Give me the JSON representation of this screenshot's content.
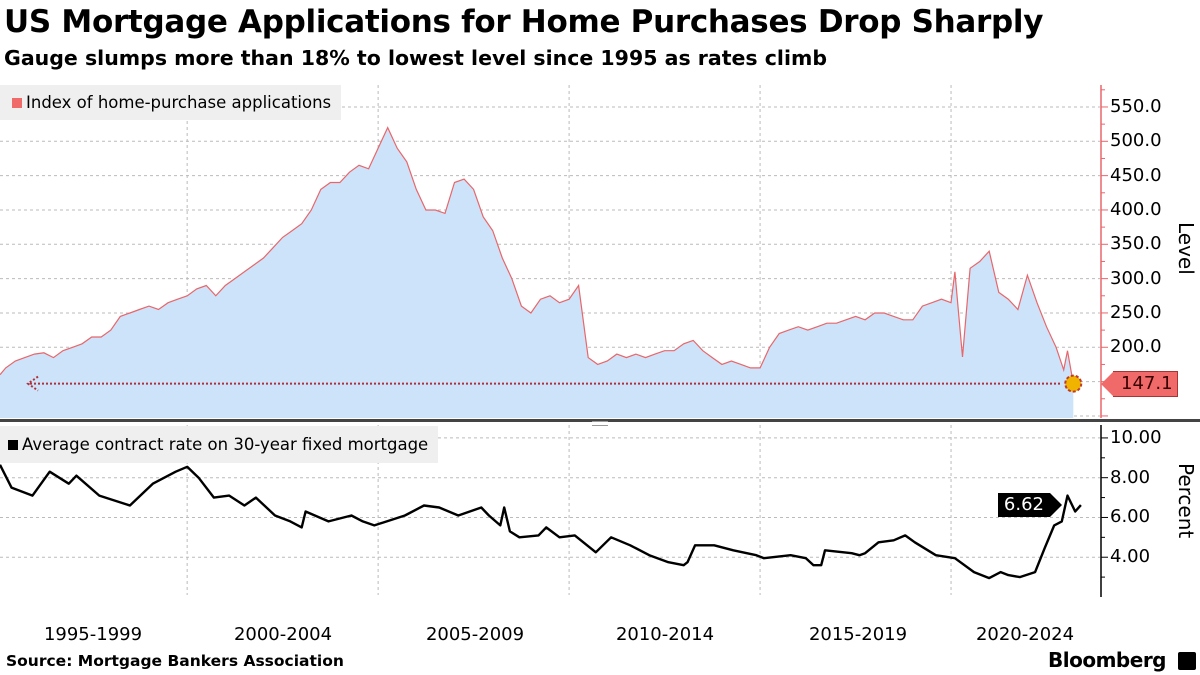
{
  "header": {
    "title": "US Mortgage Applications for Home Purchases Drop Sharply",
    "subtitle": "Gauge slumps more than 18% to lowest level since 1995 as rates climb"
  },
  "footer": {
    "source": "Source: Mortgage Bankers Association",
    "logo_text": "Bloomberg"
  },
  "x_tick_labels": [
    "1995-1999",
    "2000-2004",
    "2005-2009",
    "2010-2014",
    "2015-2019",
    "2020-2024"
  ],
  "chart_data": [
    {
      "type": "area",
      "legend": "Index of home-purchase applications",
      "ylabel": "Level",
      "xlim": [
        1995.1,
        2023.9
      ],
      "ylim": [
        97,
        582
      ],
      "y_ticks": [
        "550.0",
        "500.0",
        "450.0",
        "400.0",
        "350.0",
        "300.0",
        "250.0",
        "200.0"
      ],
      "y_tick_values": [
        550,
        500,
        450,
        400,
        350,
        300,
        250,
        200
      ],
      "gridlines": [
        100,
        150,
        200,
        250,
        300,
        350,
        400,
        450,
        500,
        550
      ],
      "x_gridlines": [
        2000,
        2005,
        2010,
        2015,
        2020
      ],
      "grid": true,
      "last_value": 147.1,
      "last_value_label": "147.1",
      "colors": {
        "line": "#e8666a",
        "fill": "#cde3fa",
        "tag": "#f06a6a",
        "marker": "#f0b400"
      },
      "points": [
        [
          1995.1,
          160
        ],
        [
          1995.25,
          170
        ],
        [
          1995.5,
          180
        ],
        [
          1995.75,
          185
        ],
        [
          1996.0,
          190
        ],
        [
          1996.25,
          192
        ],
        [
          1996.5,
          185
        ],
        [
          1996.75,
          195
        ],
        [
          1997.0,
          200
        ],
        [
          1997.25,
          205
        ],
        [
          1997.5,
          215
        ],
        [
          1997.75,
          215
        ],
        [
          1998.0,
          225
        ],
        [
          1998.25,
          245
        ],
        [
          1998.5,
          250
        ],
        [
          1998.75,
          255
        ],
        [
          1999.0,
          260
        ],
        [
          1999.25,
          255
        ],
        [
          1999.5,
          265
        ],
        [
          1999.75,
          270
        ],
        [
          2000.0,
          275
        ],
        [
          2000.25,
          285
        ],
        [
          2000.5,
          290
        ],
        [
          2000.75,
          275
        ],
        [
          2001.0,
          290
        ],
        [
          2001.25,
          300
        ],
        [
          2001.5,
          310
        ],
        [
          2001.75,
          320
        ],
        [
          2002.0,
          330
        ],
        [
          2002.25,
          345
        ],
        [
          2002.5,
          360
        ],
        [
          2002.75,
          370
        ],
        [
          2003.0,
          380
        ],
        [
          2003.25,
          400
        ],
        [
          2003.5,
          430
        ],
        [
          2003.75,
          440
        ],
        [
          2004.0,
          440
        ],
        [
          2004.25,
          455
        ],
        [
          2004.5,
          465
        ],
        [
          2004.75,
          460
        ],
        [
          2005.0,
          490
        ],
        [
          2005.25,
          520
        ],
        [
          2005.5,
          490
        ],
        [
          2005.75,
          470
        ],
        [
          2006.0,
          430
        ],
        [
          2006.25,
          400
        ],
        [
          2006.5,
          400
        ],
        [
          2006.75,
          395
        ],
        [
          2007.0,
          440
        ],
        [
          2007.25,
          445
        ],
        [
          2007.5,
          430
        ],
        [
          2007.75,
          390
        ],
        [
          2008.0,
          370
        ],
        [
          2008.25,
          330
        ],
        [
          2008.5,
          300
        ],
        [
          2008.75,
          260
        ],
        [
          2009.0,
          250
        ],
        [
          2009.25,
          270
        ],
        [
          2009.5,
          275
        ],
        [
          2009.75,
          265
        ],
        [
          2010.0,
          270
        ],
        [
          2010.25,
          290
        ],
        [
          2010.5,
          185
        ],
        [
          2010.75,
          175
        ],
        [
          2011.0,
          180
        ],
        [
          2011.25,
          190
        ],
        [
          2011.5,
          185
        ],
        [
          2011.75,
          190
        ],
        [
          2012.0,
          185
        ],
        [
          2012.25,
          190
        ],
        [
          2012.5,
          195
        ],
        [
          2012.75,
          195
        ],
        [
          2013.0,
          205
        ],
        [
          2013.25,
          210
        ],
        [
          2013.5,
          195
        ],
        [
          2013.75,
          185
        ],
        [
          2014.0,
          175
        ],
        [
          2014.25,
          180
        ],
        [
          2014.5,
          175
        ],
        [
          2014.75,
          170
        ],
        [
          2015.0,
          170
        ],
        [
          2015.25,
          200
        ],
        [
          2015.5,
          220
        ],
        [
          2015.75,
          225
        ],
        [
          2016.0,
          230
        ],
        [
          2016.25,
          225
        ],
        [
          2016.5,
          230
        ],
        [
          2016.75,
          235
        ],
        [
          2017.0,
          235
        ],
        [
          2017.25,
          240
        ],
        [
          2017.5,
          245
        ],
        [
          2017.75,
          240
        ],
        [
          2018.0,
          250
        ],
        [
          2018.25,
          250
        ],
        [
          2018.5,
          245
        ],
        [
          2018.75,
          240
        ],
        [
          2019.0,
          240
        ],
        [
          2019.25,
          260
        ],
        [
          2019.5,
          265
        ],
        [
          2019.75,
          270
        ],
        [
          2020.0,
          265
        ],
        [
          2020.1,
          310
        ],
        [
          2020.3,
          186
        ],
        [
          2020.5,
          315
        ],
        [
          2020.75,
          325
        ],
        [
          2021.0,
          340
        ],
        [
          2021.25,
          280
        ],
        [
          2021.5,
          270
        ],
        [
          2021.75,
          255
        ],
        [
          2022.0,
          305
        ],
        [
          2022.25,
          265
        ],
        [
          2022.5,
          230
        ],
        [
          2022.75,
          200
        ],
        [
          2022.95,
          167
        ],
        [
          2023.05,
          195
        ],
        [
          2023.2,
          147.1
        ]
      ]
    },
    {
      "type": "line",
      "legend": "Average contract rate on 30-year fixed mortgage",
      "ylabel": "Percent",
      "xlim": [
        1995.1,
        2023.9
      ],
      "ylim": [
        2.1,
        10.65
      ],
      "y_ticks": [
        "10.00",
        "8.00",
        "6.00",
        "4.00"
      ],
      "y_tick_values": [
        10,
        8,
        6,
        4
      ],
      "gridlines": [
        4,
        6,
        8,
        10
      ],
      "x_gridlines": [
        2000,
        2005,
        2010,
        2015,
        2020
      ],
      "grid": true,
      "last_value": 6.62,
      "last_value_label": "6.62",
      "colors": {
        "line": "#000000",
        "tag": "#000000"
      },
      "points": [
        [
          1995.1,
          8.65
        ],
        [
          1995.4,
          7.5
        ],
        [
          1995.95,
          7.1
        ],
        [
          1996.4,
          8.3
        ],
        [
          1996.9,
          7.7
        ],
        [
          1997.1,
          8.1
        ],
        [
          1997.7,
          7.1
        ],
        [
          1998.5,
          6.6
        ],
        [
          1999.1,
          7.7
        ],
        [
          1999.7,
          8.3
        ],
        [
          2000.0,
          8.55
        ],
        [
          2000.3,
          8.0
        ],
        [
          2000.7,
          7.0
        ],
        [
          2001.1,
          7.1
        ],
        [
          2001.5,
          6.6
        ],
        [
          2001.8,
          7.0
        ],
        [
          2002.3,
          6.1
        ],
        [
          2002.7,
          5.8
        ],
        [
          2003.0,
          5.5
        ],
        [
          2003.1,
          6.3
        ],
        [
          2003.7,
          5.8
        ],
        [
          2004.3,
          6.1
        ],
        [
          2004.6,
          5.8
        ],
        [
          2004.9,
          5.6
        ],
        [
          2005.7,
          6.1
        ],
        [
          2006.2,
          6.6
        ],
        [
          2006.6,
          6.5
        ],
        [
          2007.1,
          6.1
        ],
        [
          2007.7,
          6.5
        ],
        [
          2007.9,
          6.1
        ],
        [
          2008.2,
          5.6
        ],
        [
          2008.3,
          6.5
        ],
        [
          2008.45,
          5.3
        ],
        [
          2008.7,
          5.0
        ],
        [
          2009.2,
          5.1
        ],
        [
          2009.4,
          5.5
        ],
        [
          2009.75,
          5.0
        ],
        [
          2010.15,
          5.1
        ],
        [
          2010.7,
          4.25
        ],
        [
          2011.1,
          5.0
        ],
        [
          2011.6,
          4.6
        ],
        [
          2012.1,
          4.1
        ],
        [
          2012.6,
          3.75
        ],
        [
          2013.0,
          3.6
        ],
        [
          2013.1,
          3.75
        ],
        [
          2013.3,
          4.6
        ],
        [
          2013.8,
          4.6
        ],
        [
          2014.3,
          4.35
        ],
        [
          2014.9,
          4.1
        ],
        [
          2015.1,
          3.95
        ],
        [
          2015.8,
          4.1
        ],
        [
          2016.2,
          3.95
        ],
        [
          2016.4,
          3.6
        ],
        [
          2016.6,
          3.6
        ],
        [
          2016.7,
          4.35
        ],
        [
          2017.4,
          4.2
        ],
        [
          2017.6,
          4.1
        ],
        [
          2017.75,
          4.2
        ],
        [
          2018.1,
          4.75
        ],
        [
          2018.5,
          4.85
        ],
        [
          2018.8,
          5.1
        ],
        [
          2019.05,
          4.75
        ],
        [
          2019.6,
          4.1
        ],
        [
          2020.1,
          3.95
        ],
        [
          2020.6,
          3.25
        ],
        [
          2021.0,
          2.95
        ],
        [
          2021.3,
          3.25
        ],
        [
          2021.5,
          3.1
        ],
        [
          2021.8,
          3.0
        ],
        [
          2022.2,
          3.25
        ],
        [
          2022.45,
          4.45
        ],
        [
          2022.7,
          5.6
        ],
        [
          2022.9,
          5.8
        ],
        [
          2023.05,
          7.1
        ],
        [
          2023.25,
          6.3
        ],
        [
          2023.4,
          6.62
        ]
      ]
    }
  ]
}
